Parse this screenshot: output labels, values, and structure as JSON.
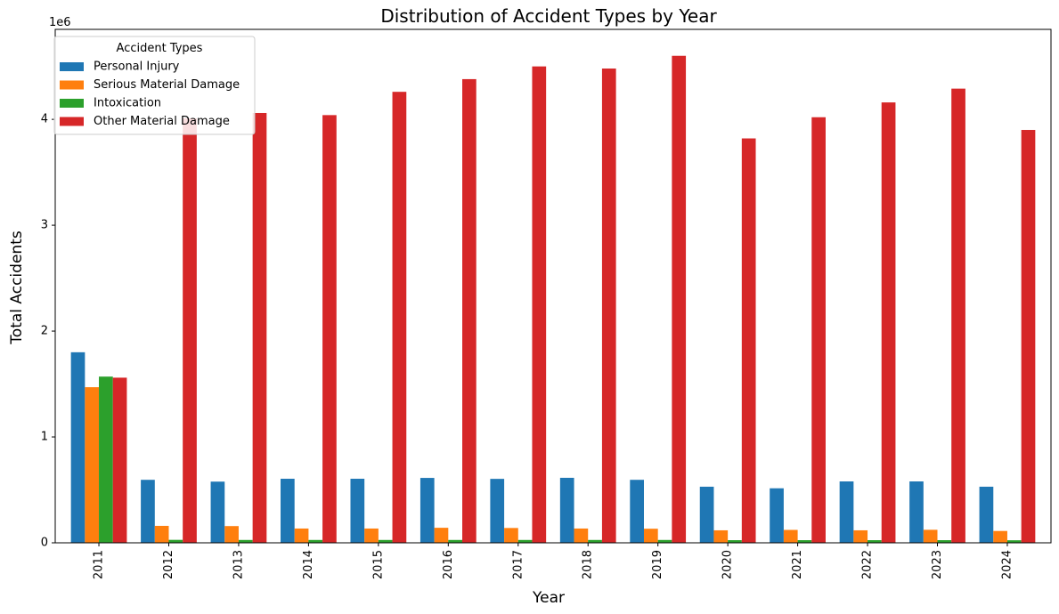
{
  "chart_data": {
    "type": "bar",
    "title": "Distribution of Accident Types by Year",
    "xlabel": "Year",
    "ylabel": "Total Accidents",
    "y_offset_label": "1e6",
    "categories": [
      "2011",
      "2012",
      "2013",
      "2014",
      "2015",
      "2016",
      "2017",
      "2018",
      "2019",
      "2020",
      "2021",
      "2022",
      "2023",
      "2024"
    ],
    "ylim": [
      0,
      4850000
    ],
    "y_ticks": [
      0,
      1000000,
      2000000,
      3000000,
      4000000
    ],
    "y_tick_labels": [
      "0",
      "1",
      "2",
      "3",
      "4"
    ],
    "grid": false,
    "legend": {
      "title": "Accident Types",
      "placement": "top-left"
    },
    "series": [
      {
        "name": "Personal Injury",
        "color": "#1f77b4",
        "values": [
          1800000,
          595000,
          578000,
          605000,
          605000,
          613000,
          604000,
          614000,
          595000,
          530000,
          515000,
          580000,
          580000,
          530000
        ]
      },
      {
        "name": "Serious Material Damage",
        "color": "#ff7f0e",
        "values": [
          1470000,
          160000,
          158000,
          135000,
          135000,
          142000,
          140000,
          135000,
          133000,
          118000,
          122000,
          118000,
          123000,
          112000
        ]
      },
      {
        "name": "Intoxication",
        "color": "#2ca02c",
        "values": [
          1570000,
          28000,
          27000,
          27000,
          27000,
          27000,
          27000,
          27000,
          27000,
          25000,
          25000,
          25000,
          25000,
          24000
        ]
      },
      {
        "name": "Other Material Damage",
        "color": "#d62728",
        "values": [
          1560000,
          4010000,
          4060000,
          4040000,
          4260000,
          4380000,
          4500000,
          4480000,
          4600000,
          3820000,
          4020000,
          4160000,
          4290000,
          3900000
        ]
      }
    ]
  }
}
